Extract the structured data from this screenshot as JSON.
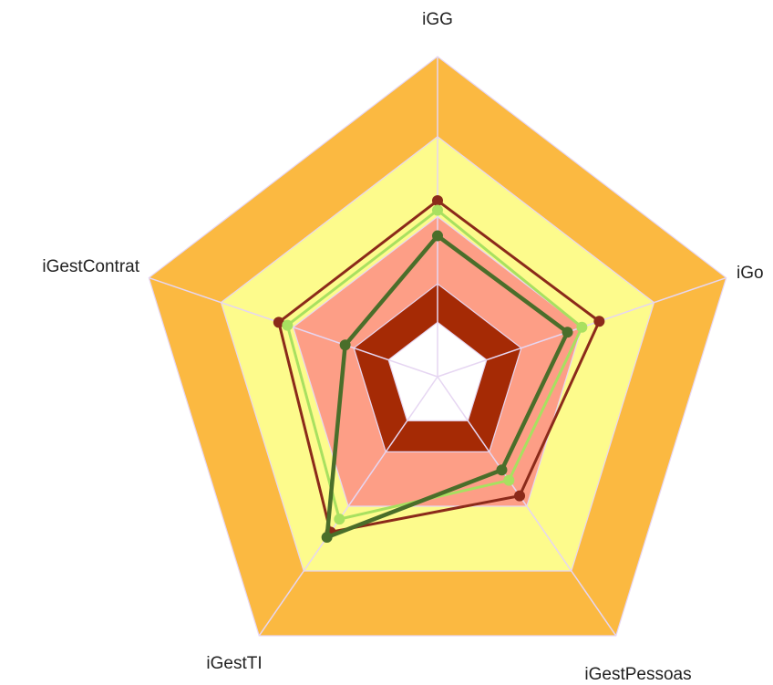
{
  "chart_data": {
    "type": "radar",
    "categories": [
      "iGG",
      "iGo",
      "iGestPessoas",
      "iGestTI",
      "iGestContrat"
    ],
    "ylim": [
      0,
      100
    ],
    "bands": [
      {
        "value": 100,
        "color": "#fbb941"
      },
      {
        "value": 75,
        "color": "#fdfb8c"
      },
      {
        "value": 50,
        "color": "#fd9e86"
      },
      {
        "value": 29,
        "color": "#a52a05"
      },
      {
        "value": 17,
        "color": "#ffffff"
      }
    ],
    "series": [
      {
        "color": "#8b2a1a",
        "values": [
          55,
          56,
          46,
          60,
          55
        ]
      },
      {
        "color": "#a8e060",
        "values": [
          52,
          50,
          40,
          55,
          52
        ]
      },
      {
        "color": "#4a6e2a",
        "values": [
          44,
          45,
          36,
          62,
          32
        ]
      }
    ]
  }
}
